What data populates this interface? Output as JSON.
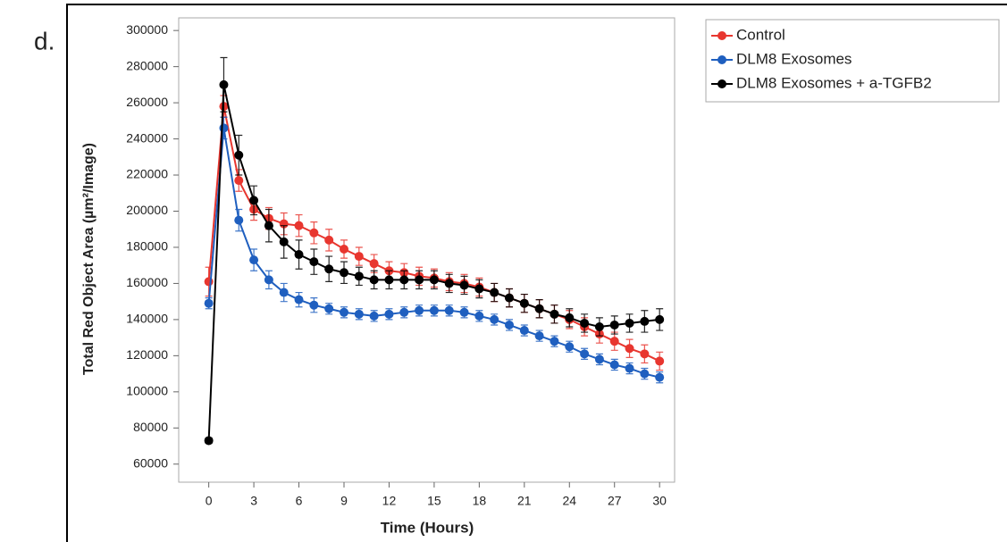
{
  "chart_data": {
    "type": "line",
    "panel_label": "d.",
    "xlabel": "Time (Hours)",
    "ylabel": "Total Red Object Area (µm²/Image)",
    "x": [
      0,
      1,
      2,
      3,
      4,
      5,
      6,
      7,
      8,
      9,
      10,
      11,
      12,
      13,
      14,
      15,
      16,
      17,
      18,
      19,
      20,
      21,
      22,
      23,
      24,
      25,
      26,
      27,
      28,
      29,
      30
    ],
    "xlim": [
      -2,
      31
    ],
    "xticks": [
      0,
      3,
      6,
      9,
      12,
      15,
      18,
      21,
      24,
      27,
      30
    ],
    "ylim": [
      50000,
      307000
    ],
    "yticks": [
      60000,
      80000,
      100000,
      120000,
      140000,
      160000,
      180000,
      200000,
      220000,
      240000,
      260000,
      280000,
      300000
    ],
    "legend": "outside-right",
    "series": [
      {
        "name": "Control",
        "color": "#e8362f",
        "values": [
          161000,
          258000,
          217000,
          201000,
          196000,
          193000,
          192000,
          188000,
          184000,
          179000,
          175000,
          171000,
          167000,
          166000,
          164000,
          163000,
          161000,
          160000,
          158000,
          155000,
          152000,
          149000,
          146000,
          143000,
          140000,
          136000,
          132000,
          128000,
          124000,
          121000,
          117000
        ],
        "errors": [
          8000,
          6000,
          6000,
          6000,
          6000,
          6000,
          6000,
          6000,
          6000,
          5000,
          5000,
          5000,
          5000,
          5000,
          5000,
          5000,
          5000,
          5000,
          5000,
          5000,
          5000,
          5000,
          5000,
          5000,
          5000,
          5000,
          5000,
          5000,
          5000,
          5000,
          5000
        ]
      },
      {
        "name": "DLM8 Exosomes",
        "color": "#1f5fbf",
        "values": [
          149000,
          246000,
          195000,
          173000,
          162000,
          155000,
          151000,
          148000,
          146000,
          144000,
          143000,
          142000,
          143000,
          144000,
          145000,
          145000,
          145000,
          144000,
          142000,
          140000,
          137000,
          134000,
          131000,
          128000,
          125000,
          121000,
          118000,
          115000,
          113000,
          110000,
          108000
        ],
        "errors": [
          3000,
          6000,
          6000,
          6000,
          5000,
          5000,
          4000,
          4000,
          3000,
          3000,
          3000,
          3000,
          3000,
          3000,
          3000,
          3000,
          3000,
          3000,
          3000,
          3000,
          3000,
          3000,
          3000,
          3000,
          3000,
          3000,
          3000,
          3000,
          3000,
          3000,
          3000
        ]
      },
      {
        "name": "DLM8 Exosomes + a-TGFB2",
        "color": "#000000",
        "values": [
          73000,
          270000,
          231000,
          206000,
          192000,
          183000,
          176000,
          172000,
          168000,
          166000,
          164000,
          162000,
          162000,
          162000,
          162000,
          162000,
          160000,
          159000,
          157000,
          155000,
          152000,
          149000,
          146000,
          143000,
          141000,
          138000,
          136000,
          137000,
          138000,
          139000,
          140000
        ],
        "errors": [
          1500,
          15000,
          11000,
          8000,
          9000,
          9000,
          8000,
          7000,
          7000,
          6000,
          5000,
          5000,
          5000,
          5000,
          5000,
          5000,
          5000,
          5000,
          5000,
          5000,
          5000,
          5000,
          5000,
          5000,
          5000,
          5000,
          5000,
          5000,
          5000,
          6000,
          6000
        ]
      }
    ]
  }
}
